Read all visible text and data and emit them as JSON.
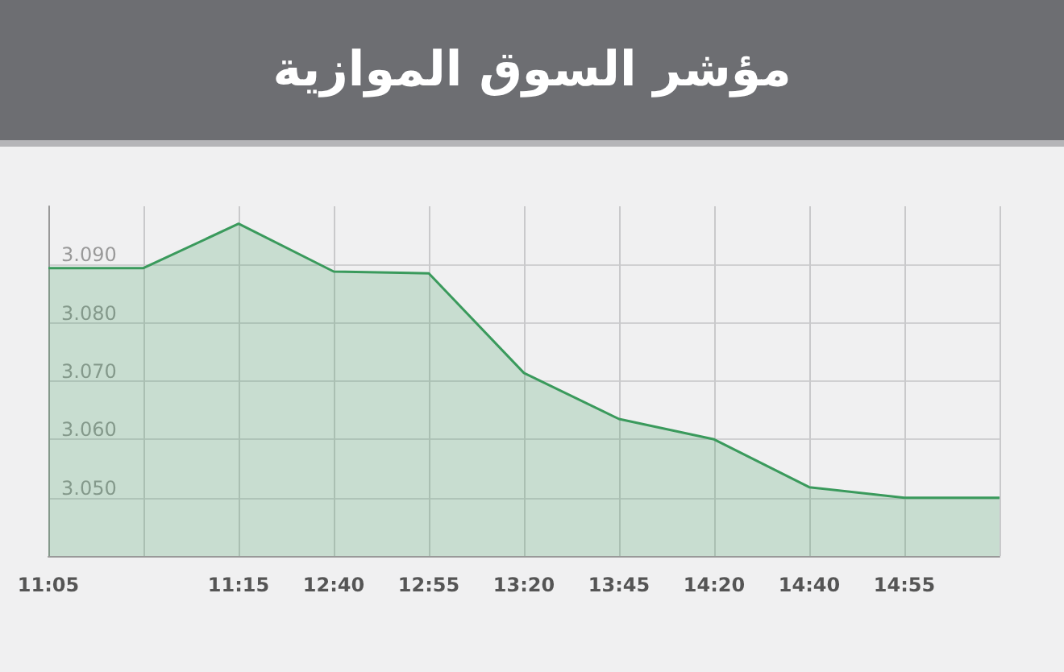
{
  "chart_data": {
    "type": "area",
    "title": "مؤشر السوق الموازية",
    "categories": [
      "11:05",
      null,
      "11:15",
      "12:40",
      "12:55",
      "13:20",
      "13:45",
      "14:20",
      "14:40",
      "14:55",
      null
    ],
    "series": [
      {
        "color": "#3a9a5c",
        "values": [
          3.0894,
          3.0894,
          3.097,
          3.0888,
          3.0885,
          3.0714,
          3.0635,
          3.06,
          3.0518,
          3.05,
          3.05
        ]
      }
    ],
    "ylim": [
      3.04,
      3.1
    ],
    "yticks": [
      {
        "value": 3.05,
        "label": "3.050"
      },
      {
        "value": 3.06,
        "label": "3.060"
      },
      {
        "value": 3.07,
        "label": "3.070"
      },
      {
        "value": 3.08,
        "label": "3.080"
      },
      {
        "value": 3.09,
        "label": "3.090"
      }
    ],
    "grid": true,
    "marker": "none"
  }
}
